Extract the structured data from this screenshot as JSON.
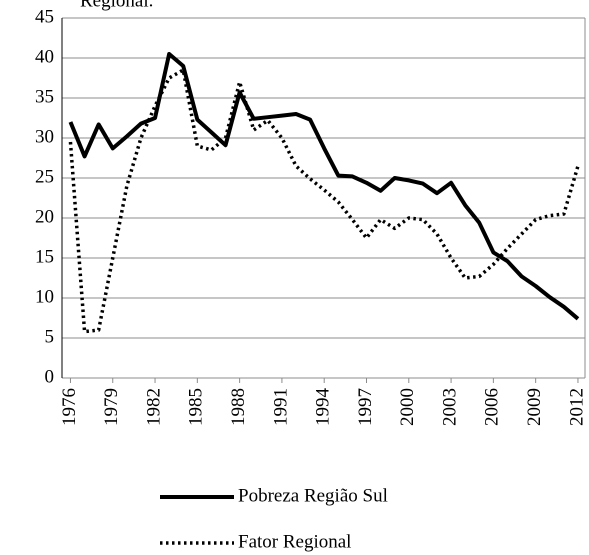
{
  "chart_data": {
    "type": "line",
    "title": "Regional.",
    "x": [
      1976,
      1977,
      1978,
      1979,
      1980,
      1981,
      1982,
      1983,
      1984,
      1985,
      1986,
      1987,
      1988,
      1989,
      1990,
      1991,
      1992,
      1993,
      1994,
      1995,
      1996,
      1997,
      1998,
      1999,
      2000,
      2001,
      2002,
      2003,
      2004,
      2005,
      2006,
      2007,
      2008,
      2009,
      2010,
      2011,
      2012
    ],
    "series": [
      {
        "name": "Pobreza Região Sul",
        "color": "#000000",
        "style": "solid",
        "values": [
          32,
          27.7,
          31.7,
          28.7,
          30.2,
          31.8,
          32.5,
          40.5,
          39,
          32.3,
          30.7,
          29.1,
          35.7,
          32.4,
          32.6,
          32.8,
          33,
          32.3,
          28.7,
          25.3,
          25.2,
          24.4,
          23.4,
          25,
          24.7,
          24.3,
          23.1,
          24.4,
          21.6,
          19.4,
          15.7,
          14.6,
          12.7,
          11.5,
          10.1,
          8.9,
          7.4
        ]
      },
      {
        "name": "Fator Regional",
        "color": "#000000",
        "style": "dotted",
        "values": [
          29.5,
          5.8,
          6,
          15,
          24,
          30,
          34,
          37.5,
          38.5,
          29,
          28.5,
          30,
          37,
          31,
          32.2,
          30,
          26.5,
          24.9,
          23.5,
          22,
          19.8,
          17.5,
          19.8,
          18.7,
          20,
          19.8,
          18,
          15,
          12.5,
          12.7,
          14.2,
          16.2,
          18,
          19.8,
          20.3,
          20.5,
          26.5
        ]
      }
    ],
    "xlim": [
      1975.4,
      2012.5
    ],
    "xticks": [
      1976,
      1979,
      1982,
      1985,
      1988,
      1991,
      1994,
      1997,
      2000,
      2003,
      2006,
      2009,
      2012
    ],
    "ylim": [
      0,
      45
    ],
    "yticks": [
      0,
      5,
      10,
      15,
      20,
      25,
      30,
      35,
      40,
      45
    ],
    "grid": true,
    "legend": "bottom"
  }
}
